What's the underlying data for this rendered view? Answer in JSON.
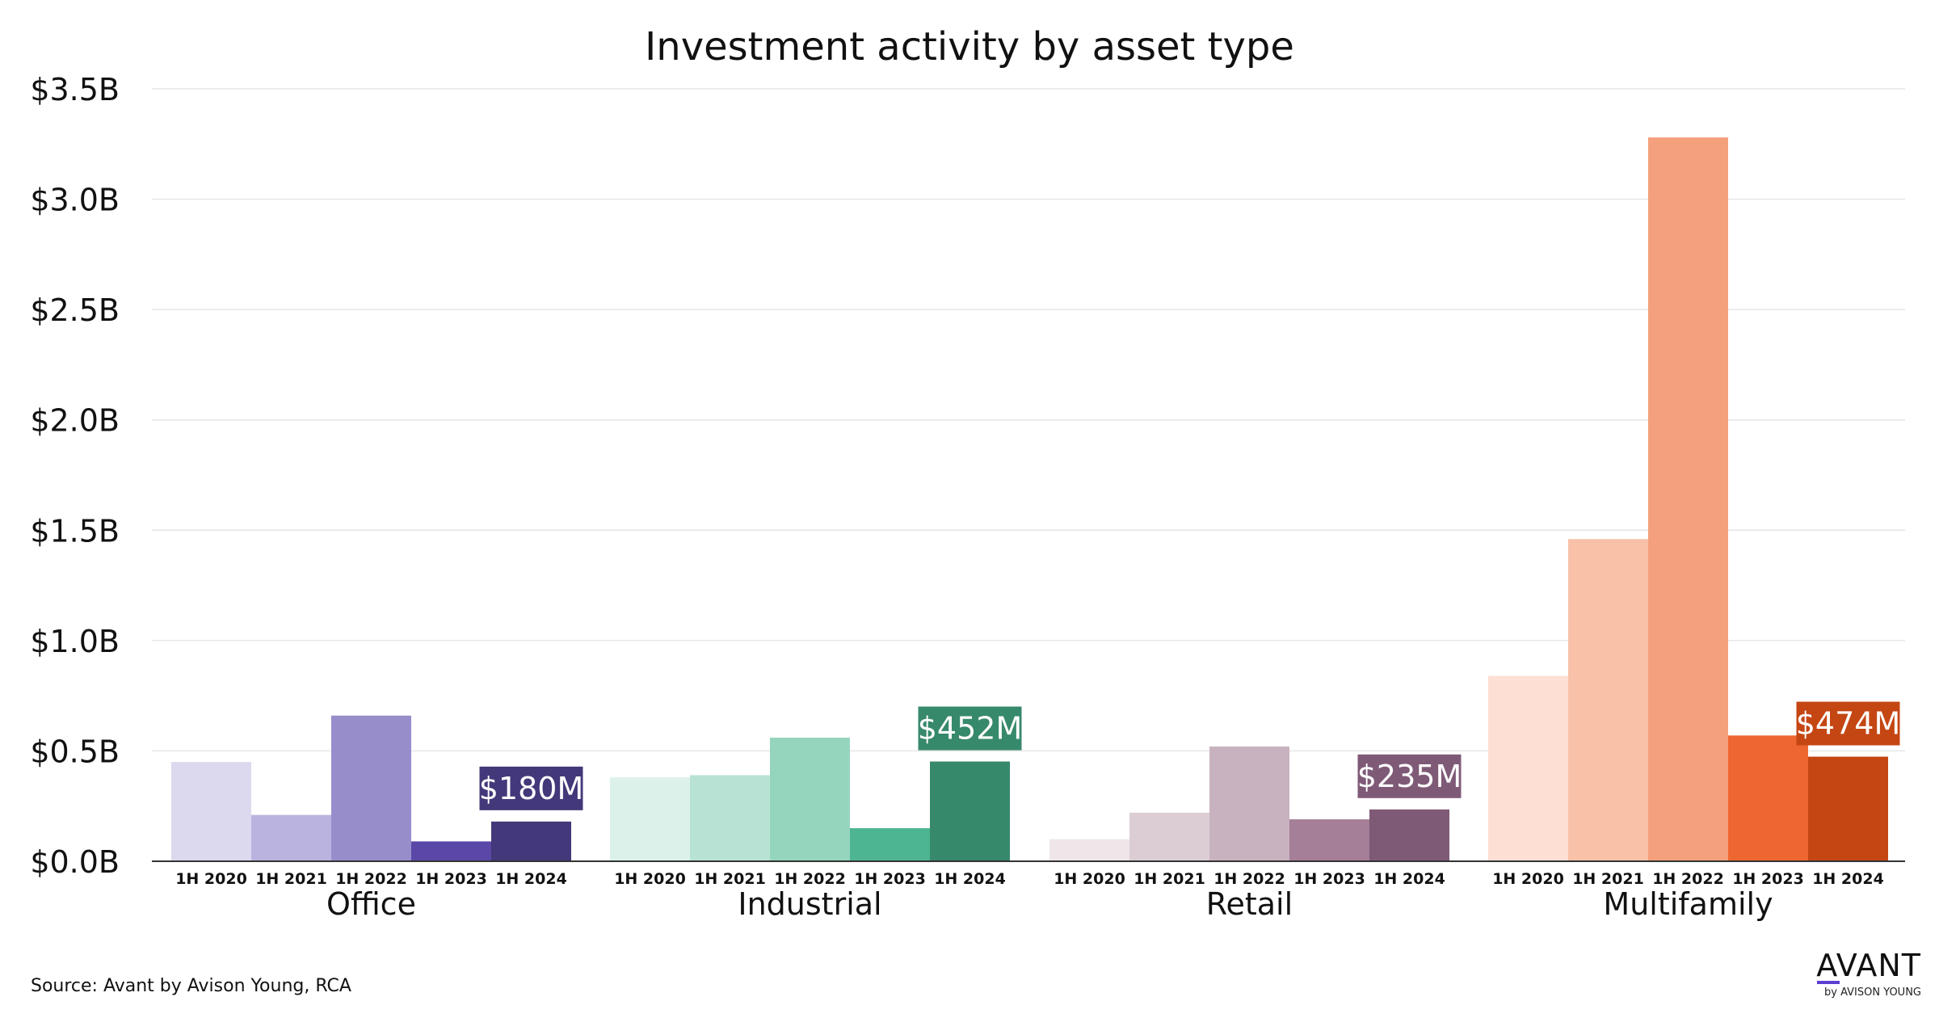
{
  "chart_data": {
    "type": "bar",
    "title": "Investment activity by asset type",
    "xlabel": "",
    "ylabel": "",
    "ylim": [
      0,
      3.5
    ],
    "y_ticks": [
      {
        "value": 0.0,
        "label": "$0.0B"
      },
      {
        "value": 0.5,
        "label": "$0.5B"
      },
      {
        "value": 1.0,
        "label": "$1.0B"
      },
      {
        "value": 1.5,
        "label": "$1.5B"
      },
      {
        "value": 2.0,
        "label": "$2.0B"
      },
      {
        "value": 2.5,
        "label": "$2.5B"
      },
      {
        "value": 3.0,
        "label": "$3.0B"
      },
      {
        "value": 3.5,
        "label": "$3.5B"
      }
    ],
    "grid": true,
    "periods": [
      "1H 2020",
      "1H 2021",
      "1H 2022",
      "1H 2023",
      "1H 2024"
    ],
    "groups": [
      {
        "name": "Office",
        "values": [
          0.45,
          0.21,
          0.66,
          0.09,
          0.18
        ],
        "colors": [
          "#dcd8ee",
          "#bab3df",
          "#978dcb",
          "#5b47a8",
          "#433879"
        ],
        "label": "$180M",
        "label_color": "#433879"
      },
      {
        "name": "Industrial",
        "values": [
          0.38,
          0.39,
          0.56,
          0.15,
          0.452
        ],
        "colors": [
          "#dbf1ea",
          "#b8e3d4",
          "#95d5bd",
          "#4db592",
          "#37896b"
        ],
        "label": "$452M",
        "label_color": "#37896b"
      },
      {
        "name": "Retail",
        "values": [
          0.1,
          0.22,
          0.52,
          0.19,
          0.235
        ],
        "colors": [
          "#efe6ea",
          "#dccdd5",
          "#c9b2bf",
          "#a57e97",
          "#7f5a77"
        ],
        "label": "$235M",
        "label_color": "#7f5a77"
      },
      {
        "name": "Multifamily",
        "values": [
          0.84,
          1.46,
          3.28,
          0.57,
          0.474
        ],
        "colors": [
          "#fde0d3",
          "#f8c1a8",
          "#f4a07c",
          "#ee6730",
          "#c44613"
        ],
        "label": "$474M",
        "label_color": "#c44613"
      }
    ]
  },
  "source": "Source: Avant by Avison Young, RCA",
  "logo": {
    "main": "AVANT",
    "sub": "by AVISON YOUNG"
  }
}
